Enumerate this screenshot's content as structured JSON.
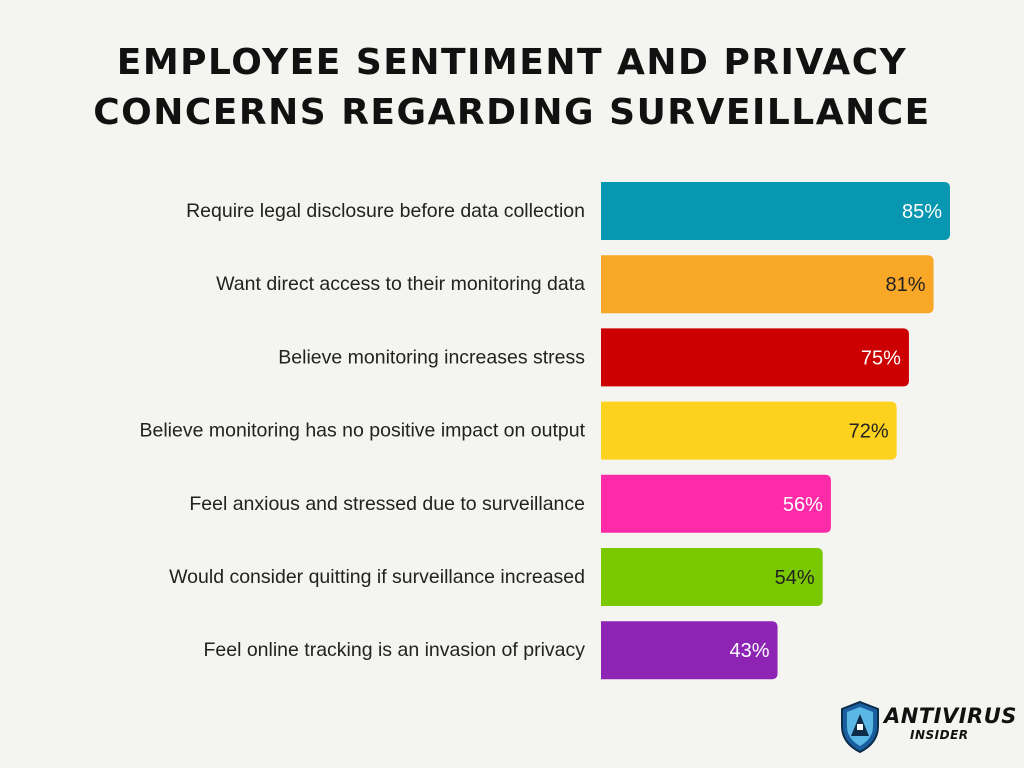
{
  "chart_data": {
    "type": "bar",
    "orientation": "horizontal",
    "title_lines": [
      "EMPLOYEE SENTIMENT AND PRIVACY",
      "CONCERNS REGARDING SURVEILLANCE"
    ],
    "categories": [
      "Require legal disclosure before data collection",
      "Want direct access to their monitoring data",
      "Believe monitoring increases stress",
      "Believe monitoring has no positive impact on output",
      "Feel anxious and stressed due to surveillance",
      "Would consider quitting if surveillance increased",
      "Feel online tracking is an invasion of privacy"
    ],
    "values": [
      85,
      81,
      75,
      72,
      56,
      54,
      43
    ],
    "data_labels": [
      "85%",
      "81%",
      "75%",
      "72%",
      "56%",
      "54%",
      "43%"
    ],
    "colors": [
      "#0797b0",
      "#f9a726",
      "#cc0000",
      "#fcd21f",
      "#ff2aa8",
      "#7ac800",
      "#8e24b4"
    ],
    "label_colors": [
      "#ffffff",
      "#222222",
      "#ffffff",
      "#222222",
      "#ffffff",
      "#222222",
      "#ffffff"
    ],
    "grid": false,
    "legend": "none"
  },
  "logo": {
    "line1": "ANTIVIRUS",
    "line2": "INSIDER",
    "shield_colors": [
      "#1a5fa0",
      "#5bb8e6"
    ]
  }
}
